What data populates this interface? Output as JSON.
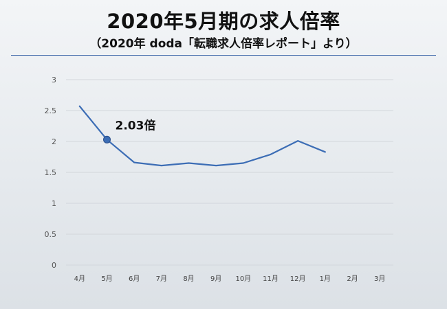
{
  "header": {
    "title": "2020年5月期の求人倍率",
    "subtitle": "（2020年 doda「転職求人倍率レポート」より）"
  },
  "colors": {
    "line": "#3c6db5",
    "marker": "#3c6db5",
    "grid": "#d2d6db",
    "rule": "#3c66a8"
  },
  "chart_data": {
    "type": "line",
    "categories": [
      "4月",
      "5月",
      "6月",
      "7月",
      "8月",
      "9月",
      "10月",
      "11月",
      "12月",
      "1月",
      "2月",
      "3月"
    ],
    "values": [
      2.57,
      2.03,
      1.66,
      1.61,
      1.65,
      1.61,
      1.65,
      1.79,
      2.01,
      1.83,
      null,
      null
    ],
    "ylim": [
      0,
      3
    ],
    "yticks": [
      "0",
      "0.5",
      "1",
      "1.5",
      "2",
      "2.5",
      "3"
    ],
    "grid": true,
    "highlight_index": 1,
    "annotation": "2.03倍"
  }
}
